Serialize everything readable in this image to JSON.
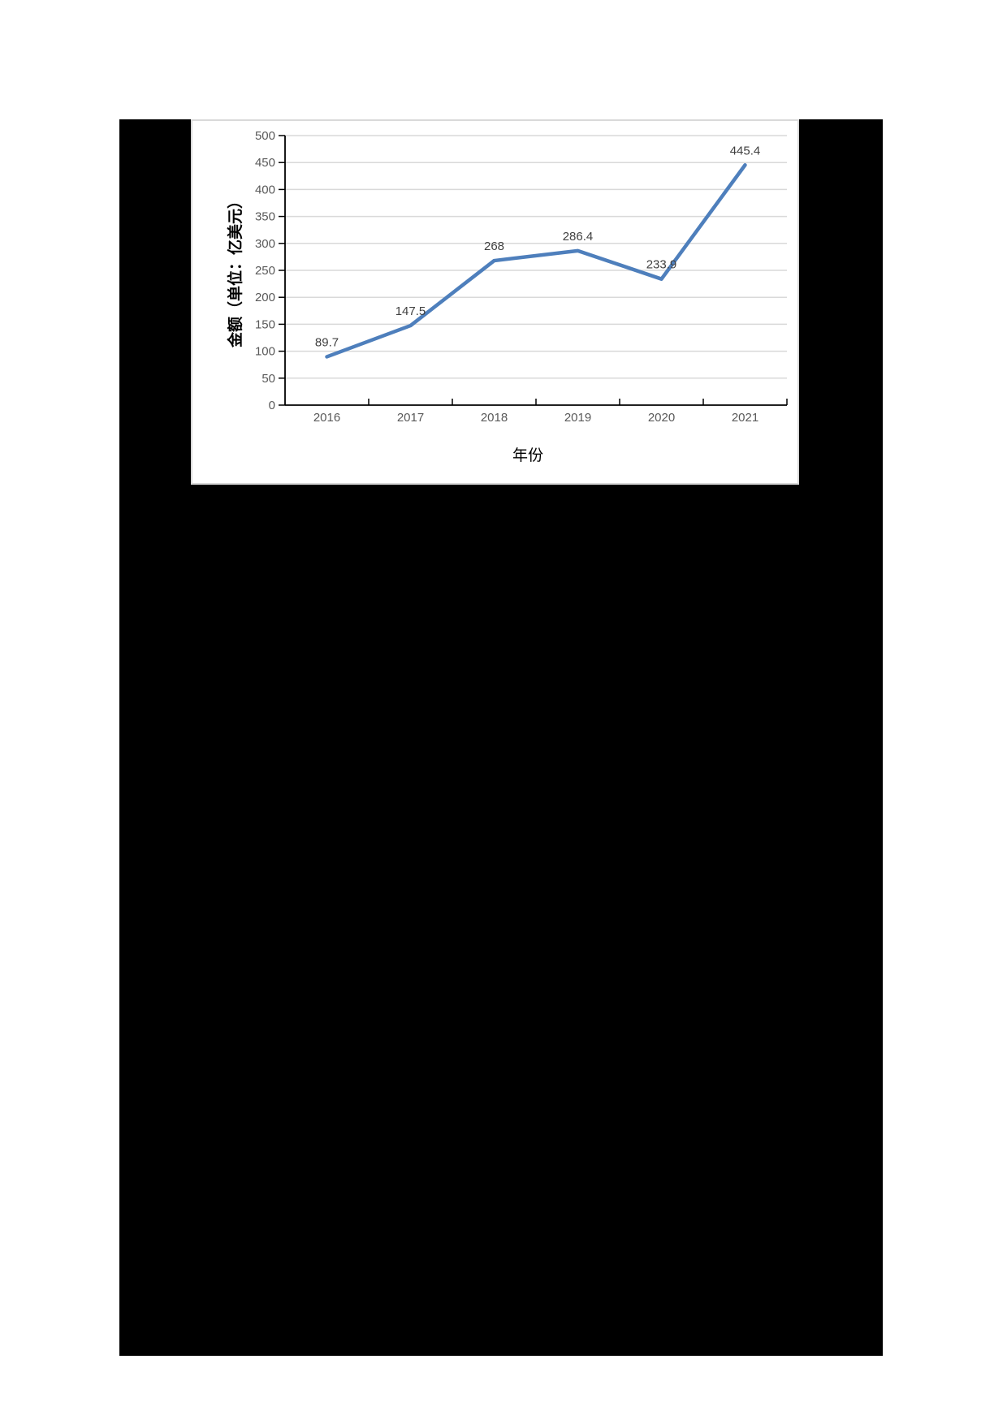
{
  "chart_data": {
    "type": "line",
    "title": "",
    "xlabel": "年份",
    "ylabel": "金额（单位：亿美元）",
    "categories": [
      "2016",
      "2017",
      "2018",
      "2019",
      "2020",
      "2021"
    ],
    "series": [
      {
        "name": "金额",
        "values": [
          89.7,
          147.5,
          268,
          286.4,
          233.9,
          445.4
        ],
        "color": "#4E7FBC"
      }
    ],
    "data_labels": [
      "89.7",
      "147.5",
      "268",
      "286.4",
      "233.9",
      "445.4"
    ],
    "ylim": [
      0,
      500
    ],
    "yticks": [
      "0",
      "50",
      "100",
      "150",
      "200",
      "250",
      "300",
      "350",
      "400",
      "450",
      "500"
    ],
    "grid": true,
    "legend": "none"
  },
  "colors": {
    "line": "#4E7FBC",
    "gridline": "#d9d9d9",
    "axis": "#000000",
    "redaction": "#000000"
  }
}
